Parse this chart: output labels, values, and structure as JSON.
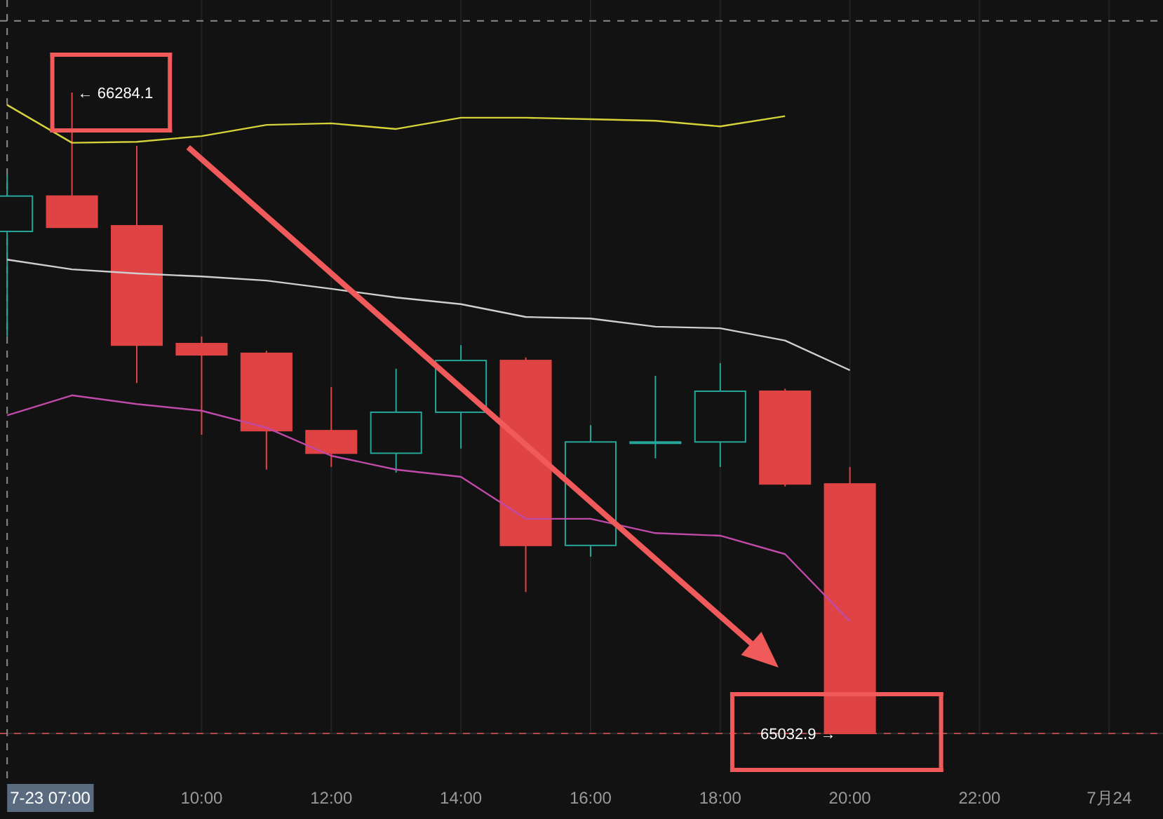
{
  "chart_data": {
    "type": "candlestick",
    "x": [
      7,
      8,
      9,
      10,
      11,
      12,
      13,
      14,
      15,
      16,
      17,
      18,
      19,
      20
    ],
    "ohlc": [
      [
        66013,
        66123,
        65808,
        66082
      ],
      [
        66082,
        66284.1,
        66021,
        66021
      ],
      [
        66024,
        66180,
        65717,
        65791
      ],
      [
        65794,
        65808,
        65616,
        65772
      ],
      [
        65775,
        65780,
        65548,
        65624
      ],
      [
        65624,
        65709,
        65553,
        65580
      ],
      [
        65580,
        65745,
        65542,
        65660
      ],
      [
        65660,
        65791,
        65589,
        65761
      ],
      [
        65761,
        65767,
        65309,
        65400
      ],
      [
        65400,
        65635,
        65378,
        65602
      ],
      [
        65600,
        65731,
        65570,
        65602
      ],
      [
        65602,
        65756,
        65553,
        65701
      ],
      [
        65701,
        65706,
        65515,
        65520
      ],
      [
        65520,
        65553,
        65032.9,
        65032.9
      ]
    ],
    "colors": [
      "#26a69a",
      "#e04343",
      "#e04343",
      "#e04343",
      "#e04343",
      "#e04343",
      "#26a69a",
      "#26a69a",
      "#e04343",
      "#26a69a",
      "#26a69a",
      "#26a69a",
      "#e04343",
      "#e04343"
    ],
    "series": [
      {
        "type": "line",
        "color": "#d6d23a",
        "values": [
          66260,
          66186,
          66188,
          66199,
          66221,
          66224,
          66213,
          66235,
          66235,
          66232,
          66229,
          66218,
          66238,
          null
        ]
      },
      {
        "type": "line",
        "color": "#cfcfcf",
        "values": [
          65958,
          65939,
          65931,
          65925,
          65917,
          65901,
          65884,
          65871,
          65846,
          65843,
          65827,
          65824,
          65800,
          65742
        ]
      },
      {
        "type": "line",
        "color": "#c04aa8",
        "values": [
          65654,
          65693,
          65676,
          65663,
          65630,
          65575,
          65548,
          65534,
          65452,
          65452,
          65424,
          65419,
          65383,
          65252
        ]
      }
    ],
    "xlim": [
      6.89,
      24.83
    ],
    "xticks": [
      {
        "value": 10,
        "label": "10:00"
      },
      {
        "value": 12,
        "label": "12:00"
      },
      {
        "value": 14,
        "label": "14:00"
      },
      {
        "value": 16,
        "label": "16:00"
      },
      {
        "value": 18,
        "label": "18:00"
      },
      {
        "value": 20,
        "label": "20:00"
      },
      {
        "value": 22,
        "label": "22:00"
      },
      {
        "value": 24,
        "label": "7月24"
      }
    ],
    "tick_labels": "x",
    "grid": "x",
    "ref_lines": [
      {
        "axis": "y",
        "value": 65032.9,
        "color": "#b04a4a",
        "line_style": "dashed"
      },
      {
        "axis": "y",
        "value": 66424,
        "color": "#8a8a8a",
        "line_style": "dashed"
      },
      {
        "axis": "x",
        "value": 7,
        "label": "7-23 07:00",
        "color": "#8a8a8a",
        "line_style": "dashed"
      }
    ],
    "annotations": [
      {
        "text": "← 66284.1",
        "x": 8,
        "y": 66284.1
      },
      {
        "text": "65032.9 →",
        "x": 20,
        "y": 65032.9
      }
    ]
  }
}
